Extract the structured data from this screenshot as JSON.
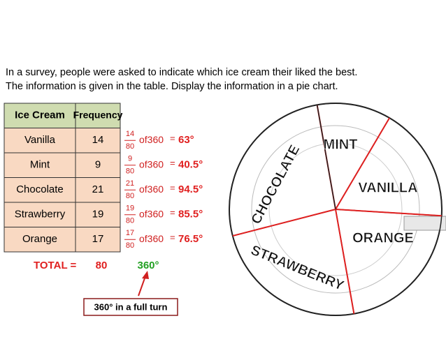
{
  "intro": [
    "In a survey, people were asked to indicate which ice cream their liked the best.",
    "The information is given in the table. Display the information in a pie chart."
  ],
  "table": {
    "header": [
      "Ice Cream",
      "Frequency"
    ],
    "rows": [
      [
        "Vanilla",
        14
      ],
      [
        "Mint",
        9
      ],
      [
        "Chocolate",
        21
      ],
      [
        "Strawberry",
        19
      ],
      [
        "Orange",
        17
      ]
    ]
  },
  "calculations": [
    {
      "numerator": 14,
      "denominator": 80,
      "text": "of360",
      "equals": "=",
      "result": "63°"
    },
    {
      "numerator": 9,
      "denominator": 80,
      "text": "of360",
      "equals": "=",
      "result": "40.5°"
    },
    {
      "numerator": 21,
      "denominator": 80,
      "text": "of360",
      "equals": "=",
      "result": "94.5°"
    },
    {
      "numerator": 19,
      "denominator": 80,
      "text": "of360",
      "equals": "=",
      "result": "85.5°"
    },
    {
      "numerator": 17,
      "denominator": 80,
      "text": "of360",
      "equals": "=",
      "result": "76.5°"
    }
  ],
  "total": {
    "label": "TOTAL =",
    "frequency": 80,
    "degrees": "360°"
  },
  "note": "360° in a full turn",
  "pie": {
    "labels": [
      "VANILLA",
      "MINT",
      "CHOCOLATE",
      "STRAWBERRY",
      "ORANGE"
    ]
  }
}
